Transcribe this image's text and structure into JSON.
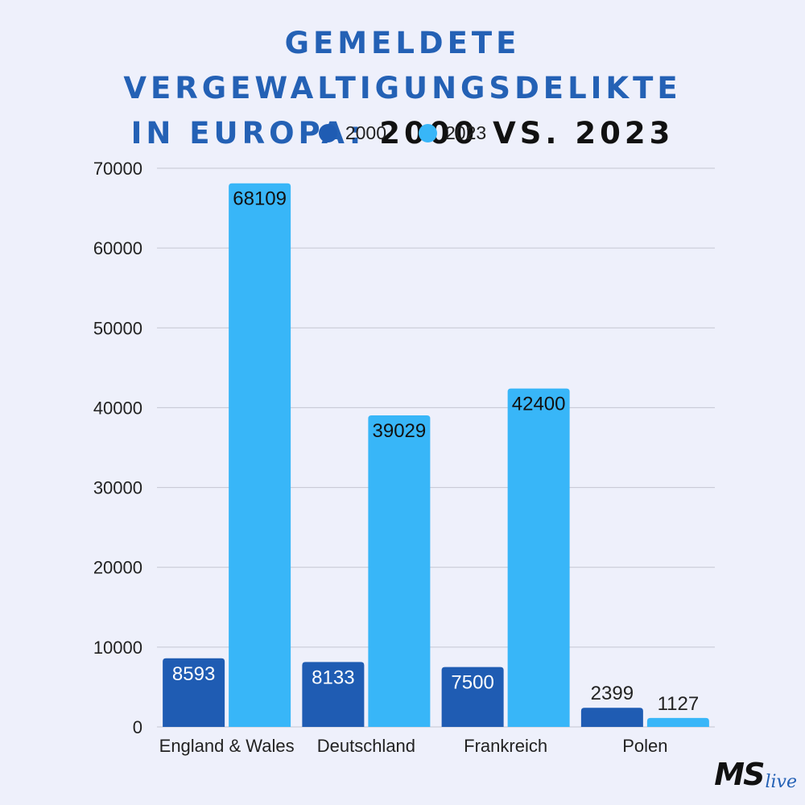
{
  "title": {
    "line1": "GEMELDETE VERGEWALTIGUNGSDELIKTE",
    "line2_blue": "IN EUROPA:",
    "line2_dark": "2000 VS. 2023"
  },
  "colors": {
    "series_2000": "#1f5cb3",
    "series_2023": "#38b6f8",
    "title_blue": "#2461b5",
    "grid": "#c4c6d2"
  },
  "logo": {
    "ms": "MS",
    "live": "live"
  },
  "chart_data": {
    "type": "bar",
    "categories": [
      "England & Wales",
      "Deutschland",
      "Frankreich",
      "Polen"
    ],
    "series": [
      {
        "name": "2000",
        "values": [
          8593,
          8133,
          7500,
          2399
        ]
      },
      {
        "name": "2023",
        "values": [
          68109,
          39029,
          42400,
          1127
        ]
      }
    ],
    "ylim": [
      0,
      70000
    ],
    "yticks": [
      0,
      10000,
      20000,
      30000,
      40000,
      50000,
      60000,
      70000
    ],
    "grid": true,
    "legend": "top-center"
  }
}
